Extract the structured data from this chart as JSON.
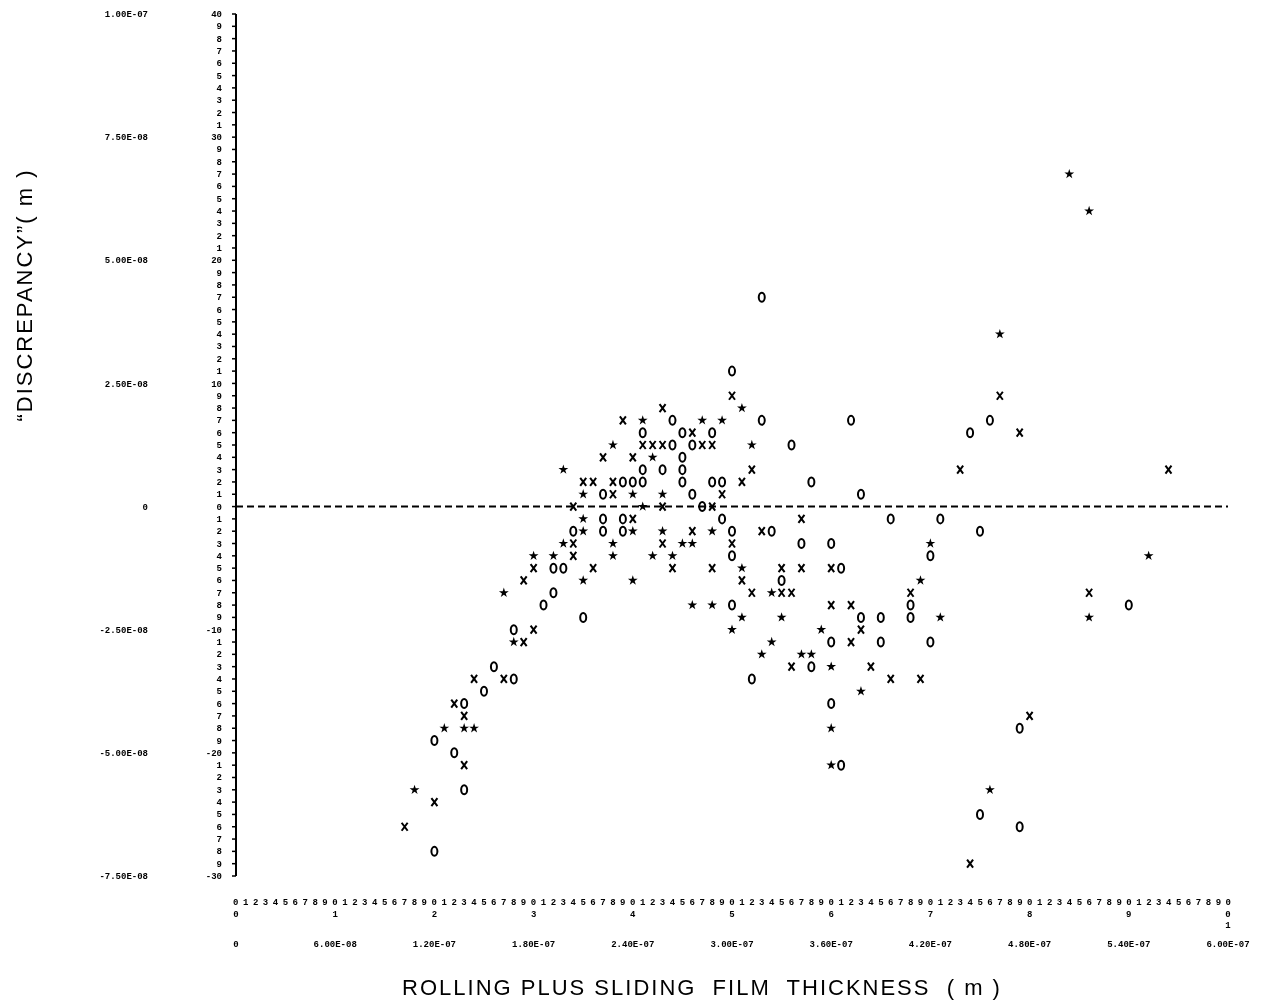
{
  "chart_data": {
    "type": "scatter",
    "xlabel": "ROLLING PLUS SLIDING  FILM  THICKNESS  ( m )",
    "ylabel": "“DISCREPANCY”( m )",
    "xlim": [
      0,
      6e-07
    ],
    "xticks": [
      0,
      {
        "value": 6e-08,
        "label": "6.00E-08"
      },
      {
        "value": 1.2e-07,
        "label": "1.20E-07"
      },
      {
        "value": 1.8e-07,
        "label": "1.80E-07"
      },
      {
        "value": 2.4e-07,
        "label": "2.40E-07"
      },
      {
        "value": 3e-07,
        "label": "3.00E-07"
      },
      {
        "value": 3.6e-07,
        "label": "3.60E-07"
      },
      {
        "value": 4.2e-07,
        "label": "4.20E-07"
      },
      {
        "value": 4.8e-07,
        "label": "4.80E-07"
      },
      {
        "value": 5.4e-07,
        "label": "5.40E-07"
      },
      {
        "value": 6e-07,
        "label": "6.00E-07"
      }
    ],
    "ylim": [
      -7.5e-08,
      1e-07
    ],
    "yticks": [
      {
        "value": -7.5e-08,
        "label": "-7.50E-08"
      },
      {
        "value": -5e-08,
        "label": "-5.00E-08"
      },
      {
        "value": -2.5e-08,
        "label": "-2.50E-08"
      },
      0,
      {
        "value": 2.5e-08,
        "label": "2.50E-08"
      },
      {
        "value": 5e-08,
        "label": "5.00E-08"
      },
      {
        "value": 7.5e-08,
        "label": "7.50E-08"
      },
      {
        "value": 1e-07,
        "label": "1.00E-07"
      }
    ],
    "y2lim": [
      -30,
      40
    ],
    "y2ticks": [
      -30,
      -20,
      -10,
      0,
      10,
      20,
      30,
      40
    ],
    "annotations": [
      "01234567890123456789012345678901234567890123456789012345678901234567890123456789012345678901234567890",
      "987654321987654321987654321987654321123456789123456789123456789"
    ],
    "x2lim": [
      0,
      10
    ],
    "x2ticks": [
      0,
      1,
      2,
      3,
      4,
      5,
      6,
      7,
      8,
      9,
      10
    ],
    "ref_lines": [
      {
        "axis": "y",
        "value": 0,
        "color": "#000000",
        "line_style": "dashed"
      }
    ],
    "series": [
      {
        "color": "#000000",
        "marker": "cross",
        "x": [
          2.04e-07,
          2.04e-07,
          2.04e-07,
          1.8e-07,
          2.16e-07,
          1.74e-07,
          1.8e-07,
          1.74e-07,
          1.44e-07,
          1.62e-07,
          1.32e-07,
          1.38e-07,
          1.38e-07,
          1.2e-07,
          1.02e-07,
          3e-07,
          2.58e-07,
          2.34e-07,
          2.76e-07,
          2.46e-07,
          2.52e-07,
          2.58e-07,
          2.82e-07,
          2.88e-07,
          2.22e-07,
          2.4e-07,
          3.12e-07,
          2.1e-07,
          2.16e-07,
          2.28e-07,
          3.06e-07,
          2.28e-07,
          2.94e-07,
          2.58e-07,
          2.88e-07,
          2.4e-07,
          3.42e-07,
          2.76e-07,
          3.18e-07,
          2.58e-07,
          3e-07,
          2.64e-07,
          2.88e-07,
          3.3e-07,
          3.42e-07,
          3.06e-07,
          3.12e-07,
          3.3e-07,
          3.36e-07,
          4.08e-07,
          3.6e-07,
          3.72e-07,
          3.78e-07,
          3.72e-07,
          3.36e-07,
          3.84e-07,
          3.96e-07,
          4.14e-07,
          4.62e-07,
          4.74e-07,
          4.38e-07,
          5.64e-07,
          5.16e-07,
          4.8e-07,
          4.44e-07,
          3.6e-07
        ],
        "values": [
          0,
          -7.5e-09,
          -1e-08,
          -1.25e-08,
          -1.25e-08,
          -1.5e-08,
          -2.5e-08,
          -2.75e-08,
          -3.5e-08,
          -3.5e-08,
          -4e-08,
          -4.25e-08,
          -5.25e-08,
          -6e-08,
          -6.5e-08,
          2.25e-08,
          2e-08,
          1.75e-08,
          1.5e-08,
          1.25e-08,
          1.25e-08,
          1.25e-08,
          1.25e-08,
          1.25e-08,
          1e-08,
          1e-08,
          7.5e-09,
          5e-09,
          5e-09,
          5e-09,
          5e-09,
          2.5e-09,
          2.5e-09,
          0,
          0,
          -2.5e-09,
          -2.5e-09,
          -5e-09,
          -5e-09,
          -7.5e-09,
          -7.5e-09,
          -1.25e-08,
          -1.25e-08,
          -1.25e-08,
          -1.25e-08,
          -1.5e-08,
          -1.75e-08,
          -1.75e-08,
          -1.75e-08,
          -1.75e-08,
          -2e-08,
          -2e-08,
          -2.5e-08,
          -2.75e-08,
          -3.25e-08,
          -3.25e-08,
          -3.5e-08,
          -3.5e-08,
          2.25e-08,
          1.5e-08,
          7.5e-09,
          7.5e-09,
          -1.75e-08,
          -4.25e-08,
          -7.25e-08,
          -1.25e-08
        ]
      },
      {
        "color": "#000000",
        "marker": "circle",
        "x": [
          2.22e-07,
          2.34e-07,
          2.04e-07,
          2.22e-07,
          2.34e-07,
          1.92e-07,
          1.98e-07,
          1.92e-07,
          1.86e-07,
          2.1e-07,
          1.68e-07,
          1.56e-07,
          1.68e-07,
          1.5e-07,
          1.38e-07,
          1.2e-07,
          1.32e-07,
          1.38e-07,
          1.2e-07,
          2.64e-07,
          3.18e-07,
          2.46e-07,
          2.7e-07,
          2.88e-07,
          2.64e-07,
          2.76e-07,
          3.36e-07,
          2.7e-07,
          2.46e-07,
          2.58e-07,
          2.7e-07,
          2.34e-07,
          2.4e-07,
          2.46e-07,
          2.7e-07,
          2.88e-07,
          2.94e-07,
          3.48e-07,
          2.22e-07,
          2.76e-07,
          2.82e-07,
          2.94e-07,
          3e-07,
          3.24e-07,
          3.42e-07,
          3e-07,
          3.78e-07,
          3.96e-07,
          4.26e-07,
          3.6e-07,
          4.2e-07,
          3.66e-07,
          3.3e-07,
          3e-07,
          4.08e-07,
          3.78e-07,
          3.9e-07,
          4.08e-07,
          3.6e-07,
          3.9e-07,
          4.2e-07,
          3.48e-07,
          3.12e-07,
          3.18e-07,
          3e-07,
          3.72e-07,
          3.6e-07,
          3.66e-07,
          4.56e-07,
          4.44e-07,
          4.5e-07,
          5.4e-07,
          4.74e-07,
          4.5e-07,
          4.74e-07
        ],
        "values": [
          -2.5e-09,
          -2.5e-09,
          -5e-09,
          -5e-09,
          -5e-09,
          -1.25e-08,
          -1.25e-08,
          -1.75e-08,
          -2e-08,
          -2.25e-08,
          -2.5e-08,
          -3.25e-08,
          -3.5e-08,
          -3.75e-08,
          -4e-08,
          -4.75e-08,
          -5e-08,
          -5.75e-08,
          -7e-08,
          1.75e-08,
          1.75e-08,
          1.5e-08,
          1.5e-08,
          1.5e-08,
          1.25e-08,
          1.25e-08,
          1.25e-08,
          1e-08,
          7.5e-09,
          7.5e-09,
          7.5e-09,
          5e-09,
          5e-09,
          5e-09,
          5e-09,
          5e-09,
          5e-09,
          5e-09,
          2.5e-09,
          2.5e-09,
          0,
          -2.5e-09,
          -5e-09,
          -5e-09,
          -7.5e-09,
          -1e-08,
          2.5e-09,
          -2.5e-09,
          -2.5e-09,
          -7.5e-09,
          -1e-08,
          -1.25e-08,
          -1.5e-08,
          -2e-08,
          -2e-08,
          -2.25e-08,
          -2.25e-08,
          -2.25e-08,
          -2.75e-08,
          -2.75e-08,
          -2.75e-08,
          -3.25e-08,
          -3.5e-08,
          4.25e-08,
          2.75e-08,
          1.75e-08,
          -4e-08,
          -5.25e-08,
          1.75e-08,
          1.5e-08,
          -5e-09,
          -2e-08,
          -4.5e-08,
          -6.25e-08,
          -6.5e-08
        ]
      },
      {
        "color": "#000000",
        "marker": "star",
        "x": [
          2.1e-07,
          2.1e-07,
          2.4e-07,
          1.98e-07,
          2.28e-07,
          1.8e-07,
          1.92e-07,
          2.28e-07,
          2.1e-07,
          2.4e-07,
          1.62e-07,
          1.68e-07,
          1.26e-07,
          1.38e-07,
          1.44e-07,
          1.08e-07,
          3.06e-07,
          2.46e-07,
          2.82e-07,
          2.94e-07,
          2.28e-07,
          3.12e-07,
          2.52e-07,
          1.98e-07,
          2.1e-07,
          2.4e-07,
          2.58e-07,
          2.46e-07,
          2.58e-07,
          2.88e-07,
          2.7e-07,
          2.76e-07,
          2.52e-07,
          2.64e-07,
          3.06e-07,
          4.14e-07,
          3.24e-07,
          4.2e-07,
          2.76e-07,
          2.88e-07,
          3.06e-07,
          3.3e-07,
          4.26e-07,
          3e-07,
          3.54e-07,
          3.24e-07,
          3.18e-07,
          3.42e-07,
          3.48e-07,
          3.6e-07,
          3.78e-07,
          3.6e-07,
          3.6e-07,
          5.04e-07,
          5.16e-07,
          4.62e-07,
          5.52e-07,
          5.16e-07,
          4.56e-07
        ],
        "values": [
          -2.5e-09,
          -5e-09,
          -5e-09,
          -7.5e-09,
          -7.5e-09,
          -1e-08,
          -1e-08,
          -1e-08,
          -1.5e-08,
          -1.5e-08,
          -1.75e-08,
          -2.75e-08,
          -4.5e-08,
          -4.5e-08,
          -4.5e-08,
          -5.75e-08,
          2e-08,
          1.75e-08,
          1.75e-08,
          1.75e-08,
          1.25e-08,
          1.25e-08,
          1e-08,
          7.5e-09,
          2.5e-09,
          2.5e-09,
          2.5e-09,
          0,
          -5e-09,
          -5e-09,
          -7.5e-09,
          -7.5e-09,
          -1e-08,
          -1e-08,
          -1.25e-08,
          -1.5e-08,
          -1.75e-08,
          -7.5e-09,
          -2e-08,
          -2e-08,
          -2.25e-08,
          -2.25e-08,
          -2.25e-08,
          -2.5e-08,
          -2.5e-08,
          -2.75e-08,
          -3e-08,
          -3e-08,
          -3e-08,
          -3.25e-08,
          -3.75e-08,
          -4.5e-08,
          -5.25e-08,
          6.75e-08,
          6e-08,
          3.5e-08,
          -1e-08,
          -2.25e-08,
          -5.75e-08
        ]
      }
    ]
  }
}
